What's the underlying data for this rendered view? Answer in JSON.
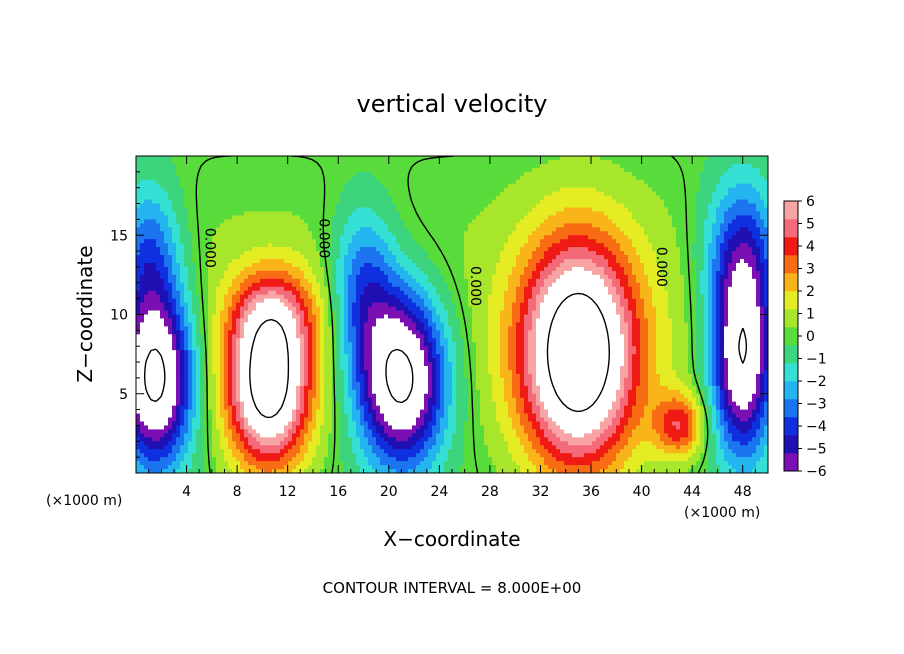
{
  "chart_data": {
    "type": "heatmap",
    "title": "vertical velocity",
    "xlabel": "X−coordinate",
    "ylabel": "Z−coordinate",
    "x_unit_label": "(×1000 m)",
    "z_unit_label": "(×1000 m)",
    "xlim": [
      0,
      50
    ],
    "ylim": [
      0,
      20
    ],
    "x_ticks": [
      4,
      8,
      12,
      16,
      20,
      24,
      28,
      32,
      36,
      40,
      44,
      48
    ],
    "y_ticks": [
      5,
      10,
      15
    ],
    "colorbar": {
      "min": -6,
      "max": 6,
      "ticks": [
        6,
        5,
        4,
        3,
        2,
        1,
        0,
        -1,
        -2,
        -3,
        -4,
        -5,
        -6
      ],
      "tick_labels": [
        "6",
        "5",
        "4",
        "3",
        "2",
        "1",
        "0",
        "−1",
        "−2",
        "−3",
        "−4",
        "−5",
        "−6"
      ],
      "colors": [
        "#7a0fb4",
        "#2010b4",
        "#1030e0",
        "#1c74f0",
        "#24b4f0",
        "#34e0d4",
        "#3cd47c",
        "#58dc3c",
        "#a8e62c",
        "#e6ec24",
        "#f8b418",
        "#f86c14",
        "#f01a14",
        "#f46a78",
        "#f8a4a4"
      ]
    },
    "contour_interval_label": "CONTOUR INTERVAL = 8.000E+00",
    "contour_label": "0.000",
    "contour_labels": [
      "0.000",
      "0.000",
      "0.000",
      "0.000"
    ],
    "features": [
      {
        "kind": "updraft",
        "x": 10.5,
        "z": 5.5,
        "rx": 3.2,
        "rz": 5.0,
        "amp": 9
      },
      {
        "kind": "updraft",
        "x": 35,
        "z": 7.5,
        "rx": 4.5,
        "rz": 7.0,
        "amp": 10
      },
      {
        "kind": "updraft",
        "x": 11,
        "z": 10,
        "rx": 3.5,
        "rz": 3.0,
        "amp": 3
      },
      {
        "kind": "updraft",
        "x": 43,
        "z": 3,
        "rx": 2.0,
        "rz": 2.0,
        "amp": 4
      },
      {
        "kind": "downdraft",
        "x": 1.5,
        "z": 6,
        "rx": 3.0,
        "rz": 5.5,
        "amp": -9
      },
      {
        "kind": "downdraft",
        "x": 21,
        "z": 6,
        "rx": 3.5,
        "rz": 5.5,
        "amp": -9
      },
      {
        "kind": "downdraft",
        "x": 48,
        "z": 7,
        "rx": 2.5,
        "rz": 6.0,
        "amp": -8
      },
      {
        "kind": "downdraft",
        "x": 18,
        "z": 12,
        "rx": 2.5,
        "rz": 5.0,
        "amp": -3.5
      },
      {
        "kind": "downdraft",
        "x": 1,
        "z": 14,
        "rx": 2.5,
        "rz": 4.5,
        "amp": -3.5
      },
      {
        "kind": "downdraft",
        "x": 48,
        "z": 14,
        "rx": 3.0,
        "rz": 5.0,
        "amp": -4
      }
    ]
  }
}
